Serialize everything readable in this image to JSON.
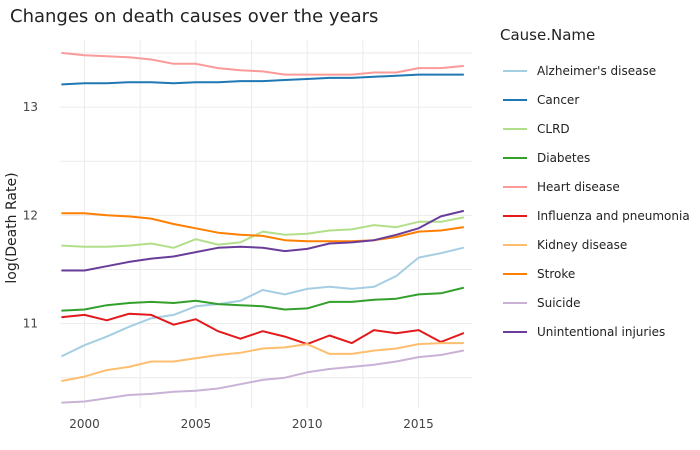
{
  "chart_data": {
    "type": "line",
    "title": "Changes on death causes over the years",
    "xlabel": "",
    "ylabel": "log(Death Rate)",
    "xlim": [
      1998.9,
      2017.4
    ],
    "ylim": [
      10.22,
      13.62
    ],
    "xticks": [
      2000,
      2005,
      2010,
      2015
    ],
    "yticks": [
      11,
      12,
      13
    ],
    "grid": true,
    "legend": {
      "title": "Cause.Name",
      "placement": "right"
    },
    "x": [
      1999,
      2000,
      2001,
      2002,
      2003,
      2004,
      2005,
      2006,
      2007,
      2008,
      2009,
      2010,
      2011,
      2012,
      2013,
      2014,
      2015,
      2016,
      2017
    ],
    "series": [
      {
        "name": "Alzheimer's disease",
        "color": "#a6cee3",
        "values": [
          10.7,
          10.8,
          10.88,
          10.97,
          11.05,
          11.08,
          11.16,
          11.18,
          11.21,
          11.31,
          11.27,
          11.32,
          11.34,
          11.32,
          11.34,
          11.44,
          11.61,
          11.65,
          11.7
        ]
      },
      {
        "name": "Cancer",
        "color": "#1f78b4",
        "values": [
          13.21,
          13.22,
          13.22,
          13.23,
          13.23,
          13.22,
          13.23,
          13.23,
          13.24,
          13.24,
          13.25,
          13.26,
          13.27,
          13.27,
          13.28,
          13.29,
          13.3,
          13.3,
          13.3
        ]
      },
      {
        "name": "CLRD",
        "color": "#b2df8a",
        "values": [
          11.72,
          11.71,
          11.71,
          11.72,
          11.74,
          11.7,
          11.78,
          11.73,
          11.75,
          11.85,
          11.82,
          11.83,
          11.86,
          11.87,
          11.91,
          11.89,
          11.94,
          11.94,
          11.98
        ]
      },
      {
        "name": "Diabetes",
        "color": "#33a02c",
        "values": [
          11.12,
          11.13,
          11.17,
          11.19,
          11.2,
          11.19,
          11.21,
          11.18,
          11.17,
          11.16,
          11.13,
          11.14,
          11.2,
          11.2,
          11.22,
          11.23,
          11.27,
          11.28,
          11.33
        ]
      },
      {
        "name": "Heart disease",
        "color": "#fb9a99",
        "values": [
          13.5,
          13.48,
          13.47,
          13.46,
          13.44,
          13.4,
          13.4,
          13.36,
          13.34,
          13.33,
          13.3,
          13.3,
          13.3,
          13.3,
          13.32,
          13.32,
          13.36,
          13.36,
          13.38
        ]
      },
      {
        "name": "Influenza and pneumonia",
        "color": "#e31a1c",
        "values": [
          11.06,
          11.08,
          11.03,
          11.09,
          11.08,
          10.99,
          11.04,
          10.93,
          10.86,
          10.93,
          10.88,
          10.81,
          10.89,
          10.82,
          10.94,
          10.91,
          10.94,
          10.83,
          10.91
        ]
      },
      {
        "name": "Kidney disease",
        "color": "#fdbf6f",
        "values": [
          10.47,
          10.51,
          10.57,
          10.6,
          10.65,
          10.65,
          10.68,
          10.71,
          10.73,
          10.77,
          10.78,
          10.81,
          10.72,
          10.72,
          10.75,
          10.77,
          10.81,
          10.82,
          10.82
        ]
      },
      {
        "name": "Stroke",
        "color": "#ff7f00",
        "values": [
          12.02,
          12.02,
          12.0,
          11.99,
          11.97,
          11.92,
          11.88,
          11.84,
          11.82,
          11.81,
          11.77,
          11.76,
          11.76,
          11.76,
          11.77,
          11.8,
          11.85,
          11.86,
          11.89
        ]
      },
      {
        "name": "Suicide",
        "color": "#cab2d6",
        "values": [
          10.27,
          10.28,
          10.31,
          10.34,
          10.35,
          10.37,
          10.38,
          10.4,
          10.44,
          10.48,
          10.5,
          10.55,
          10.58,
          10.6,
          10.62,
          10.65,
          10.69,
          10.71,
          10.75
        ]
      },
      {
        "name": "Unintentional injuries",
        "color": "#6a3d9a",
        "values": [
          11.49,
          11.49,
          11.53,
          11.57,
          11.6,
          11.62,
          11.66,
          11.7,
          11.71,
          11.7,
          11.67,
          11.69,
          11.74,
          11.75,
          11.77,
          11.82,
          11.88,
          11.99,
          12.04
        ]
      }
    ]
  }
}
